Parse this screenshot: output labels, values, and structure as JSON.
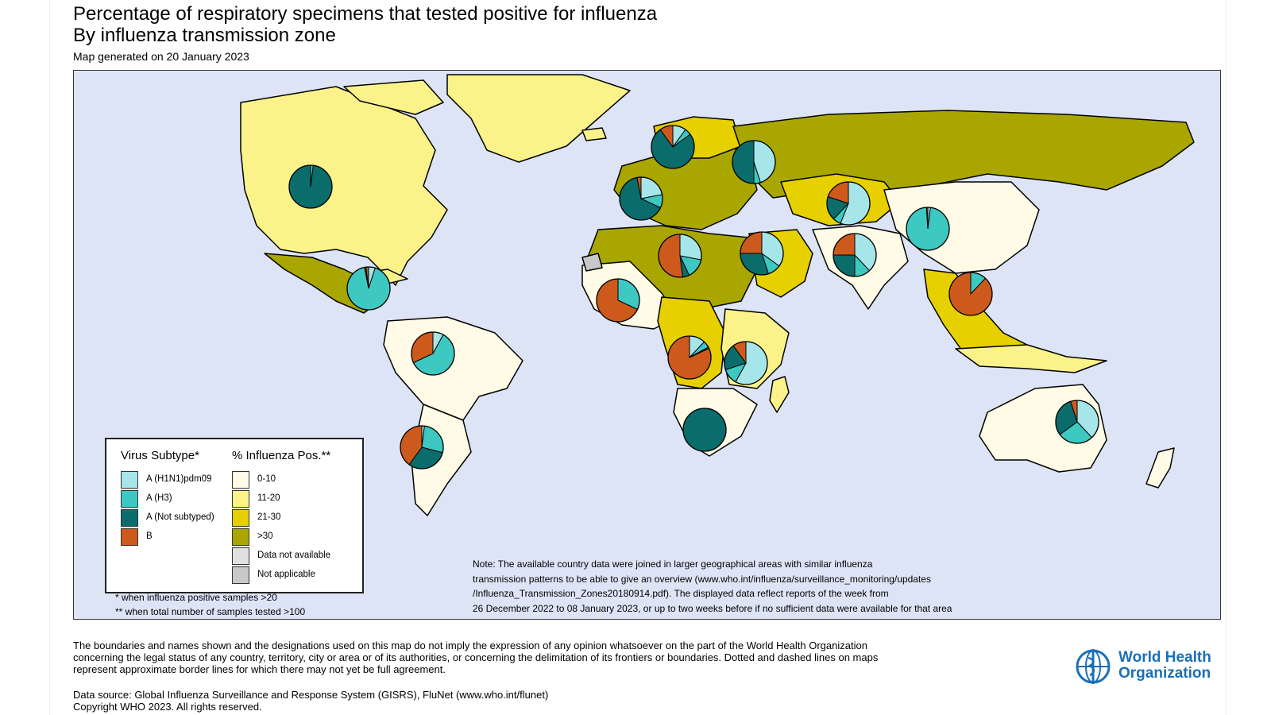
{
  "header": {
    "title": "Percentage of respiratory specimens that tested positive for influenza",
    "subtitle": "By influenza transmission zone",
    "generated": "Map generated on 20 January 2023"
  },
  "colors": {
    "ocean": "#dde4f6",
    "h1n1": "#a6e6ea",
    "h3": "#3ec8c2",
    "not_subtyped": "#0b6c6c",
    "b": "#cd5a1c",
    "pos_0_10": "#fffbe6",
    "pos_11_20": "#fbf28a",
    "pos_21_30": "#e6d000",
    "pos_gt30": "#a9a600",
    "not_available": "#e0e0e0",
    "not_applicable": "#c8c8c8"
  },
  "legend": {
    "virus_header": "Virus Subtype*",
    "pos_header": "% Influenza Pos.**",
    "virus_items": [
      {
        "label": "A (H1N1)pdm09",
        "color": "#a6e6ea"
      },
      {
        "label": "A (H3)",
        "color": "#3ec8c2"
      },
      {
        "label": "A (Not subtyped)",
        "color": "#0b6c6c"
      },
      {
        "label": "B",
        "color": "#cd5a1c"
      }
    ],
    "pos_items": [
      {
        "label": "0-10",
        "color": "#fffbe6"
      },
      {
        "label": "11-20",
        "color": "#fbf28a"
      },
      {
        "label": "21-30",
        "color": "#e6d000"
      },
      {
        "label": ">30",
        "color": "#a9a600"
      },
      {
        "label": "Data not available",
        "color": "#e0e0e0"
      },
      {
        "label": "Not applicable",
        "color": "#c8c8c8"
      }
    ],
    "footnote1": "* when influenza positive samples >20",
    "footnote2": "** when total number of samples tested >100"
  },
  "note": [
    "Note: The available country data were joined in larger geographical areas with similar influenza",
    "transmission patterns to be able to give an overview (www.who.int/influenza/surveillance_monitoring/updates",
    "/Influenza_Transmission_Zones20180914.pdf). The displayed data reflect reports of the week from",
    "26 December 2022 to 08 January 2023, or up to two weeks before if no sufficient data were available for that area"
  ],
  "disclaimer": [
    "The boundaries and names shown and the designations used on this map do not imply the expression of any opinion whatsoever on the part of the World Health Organization",
    "concerning the legal status of any country, territory, city or area or of its authorities, or concerning the delimitation of its frontiers or boundaries. Dotted and dashed lines on maps",
    "represent approximate border lines for which there may not yet be full agreement."
  ],
  "source": [
    "Data source: Global Influenza Surveillance and Response System (GISRS), FluNet (www.who.int/flunet)",
    "Copyright WHO 2023. All rights reserved."
  ],
  "who_logo": {
    "line1": "World Health",
    "line2": "Organization"
  },
  "pies": [
    {
      "zone": "North America",
      "h1n1": 0.0,
      "h3": 0.02,
      "nst": 0.98,
      "b": 0.0
    },
    {
      "zone": "Central America and Caribbean",
      "h1n1": 0.05,
      "h3": 0.92,
      "nst": 0.01,
      "b": 0.02
    },
    {
      "zone": "Tropical South America",
      "h1n1": 0.08,
      "h3": 0.6,
      "nst": 0.0,
      "b": 0.32
    },
    {
      "zone": "Temperate South America",
      "h1n1": 0.02,
      "h3": 0.27,
      "nst": 0.31,
      "b": 0.4
    },
    {
      "zone": "Northern Europe",
      "h1n1": 0.1,
      "h3": 0.05,
      "nst": 0.75,
      "b": 0.1
    },
    {
      "zone": "Eastern Europe",
      "h1n1": 0.45,
      "h3": 0.05,
      "nst": 0.5,
      "b": 0.0
    },
    {
      "zone": "South West Europe",
      "h1n1": 0.22,
      "h3": 0.1,
      "nst": 0.65,
      "b": 0.03
    },
    {
      "zone": "Central Asia",
      "h1n1": 0.56,
      "h3": 0.06,
      "nst": 0.18,
      "b": 0.2
    },
    {
      "zone": "Northern Africa",
      "h1n1": 0.28,
      "h3": 0.15,
      "nst": 0.05,
      "b": 0.52
    },
    {
      "zone": "Western Asia",
      "h1n1": 0.35,
      "h3": 0.1,
      "nst": 0.3,
      "b": 0.25
    },
    {
      "zone": "Southern Asia",
      "h1n1": 0.38,
      "h3": 0.12,
      "nst": 0.25,
      "b": 0.25
    },
    {
      "zone": "Eastern Asia",
      "h1n1": 0.02,
      "h3": 0.97,
      "nst": 0.0,
      "b": 0.01
    },
    {
      "zone": "Western Africa",
      "h1n1": 0.0,
      "h3": 0.32,
      "nst": 0.0,
      "b": 0.68
    },
    {
      "zone": "Middle Africa",
      "h1n1": 0.12,
      "h3": 0.05,
      "nst": 0.01,
      "b": 0.82
    },
    {
      "zone": "Eastern Africa",
      "h1n1": 0.58,
      "h3": 0.12,
      "nst": 0.2,
      "b": 0.1
    },
    {
      "zone": "South East Asia",
      "h1n1": 0.0,
      "h3": 0.12,
      "nst": 0.0,
      "b": 0.88
    },
    {
      "zone": "Southern Africa",
      "h1n1": 0.0,
      "h3": 0.0,
      "nst": 1.0,
      "b": 0.0
    },
    {
      "zone": "Oceania Melanesia Polynesia",
      "h1n1": 0.38,
      "h3": 0.27,
      "nst": 0.3,
      "b": 0.05
    }
  ]
}
